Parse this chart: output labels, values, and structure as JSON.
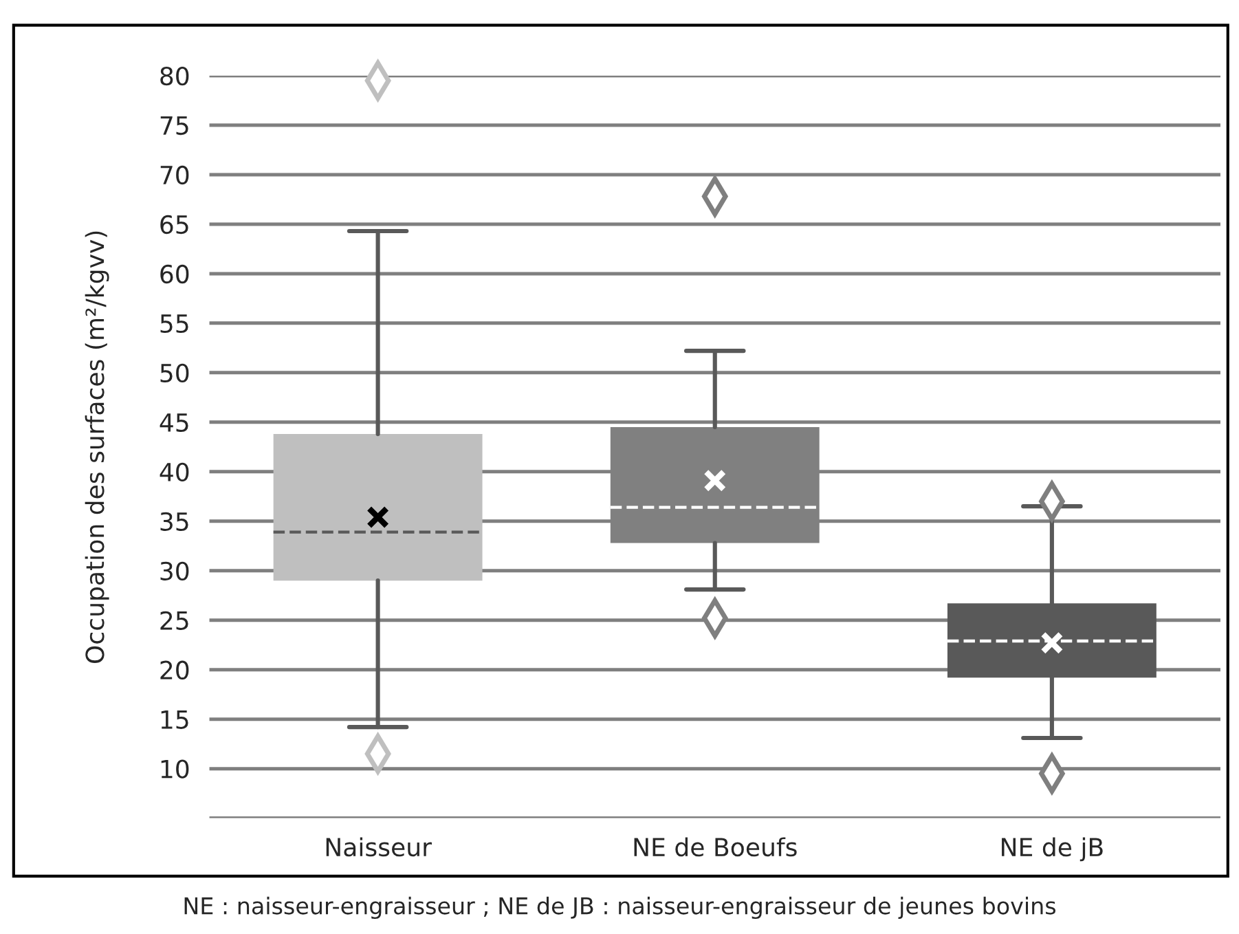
{
  "chart_data": {
    "type": "box",
    "ylabel": "Occupation des surfaces (m²/kgvv)",
    "categories": [
      "Naisseur",
      "NE de Boeufs",
      "NE de jB"
    ],
    "boxes": [
      {
        "low": 14.2,
        "q1": 29.0,
        "median": 33.9,
        "q3": 43.8,
        "high": 64.3,
        "mean": 35.4,
        "outliers": [
          79.5,
          11.5
        ]
      },
      {
        "low": 28.1,
        "q1": 32.8,
        "median": 36.4,
        "q3": 44.5,
        "high": 52.2,
        "mean": 39.1,
        "outliers": [
          67.8,
          25.2
        ]
      },
      {
        "low": 13.1,
        "q1": 19.2,
        "median": 22.9,
        "q3": 26.7,
        "high": 36.5,
        "mean": 22.7,
        "outliers": [
          37.0,
          9.5
        ]
      }
    ],
    "colors": [
      "#bfbfbf",
      "#808080",
      "#595959"
    ],
    "ylim": [
      5,
      80
    ],
    "yticks": [
      {
        "value": 5,
        "label": null
      },
      10,
      15,
      20,
      25,
      30,
      35,
      40,
      45,
      50,
      55,
      60,
      65,
      70,
      75,
      80
    ],
    "grid": "y",
    "annotations": [
      "NE : naisseur-engraisseur ; NE de JB : naisseur-engraisseur de jeunes bovins"
    ]
  }
}
